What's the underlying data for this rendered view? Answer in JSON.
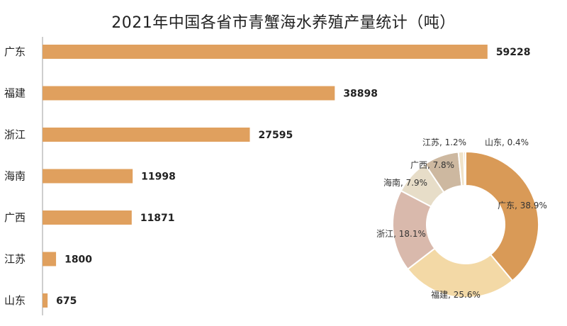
{
  "chart_data": [
    {
      "type": "bar",
      "orientation": "horizontal",
      "title": "2021年中国各省市青蟹海水养殖产量统计（吨）",
      "categories": [
        "广东",
        "福建",
        "浙江",
        "海南",
        "广西",
        "江苏",
        "山东"
      ],
      "values": [
        59228,
        38898,
        27595,
        11998,
        11871,
        1800,
        675
      ],
      "data_labels": [
        "59228",
        "38898",
        "27595",
        "11998",
        "11871",
        "1800",
        "675"
      ],
      "xlim": [
        0,
        60000
      ],
      "bar_color": "#E0A05E",
      "grid": false
    },
    {
      "type": "pie",
      "style": "donut",
      "slices": [
        {
          "name": "广东",
          "value": 38.9,
          "label": "广东, 38.9%",
          "color": "#D99A57"
        },
        {
          "name": "福建",
          "value": 25.6,
          "label": "福建, 25.6%",
          "color": "#F3D9A6"
        },
        {
          "name": "浙江",
          "value": 18.1,
          "label": "浙江, 18.1%",
          "color": "#D9B9AC"
        },
        {
          "name": "海南",
          "value": 7.9,
          "label": "海南, 7.9%",
          "color": "#E7DDC8"
        },
        {
          "name": "广西",
          "value": 7.8,
          "label": "广西, 7.8%",
          "color": "#CDB8A0"
        },
        {
          "name": "江苏",
          "value": 1.2,
          "label": "江苏, 1.2%",
          "color": "#F0E2C8"
        },
        {
          "name": "山东",
          "value": 0.4,
          "label": "山东, 0.4%",
          "color": "#E9C48C"
        }
      ]
    }
  ]
}
